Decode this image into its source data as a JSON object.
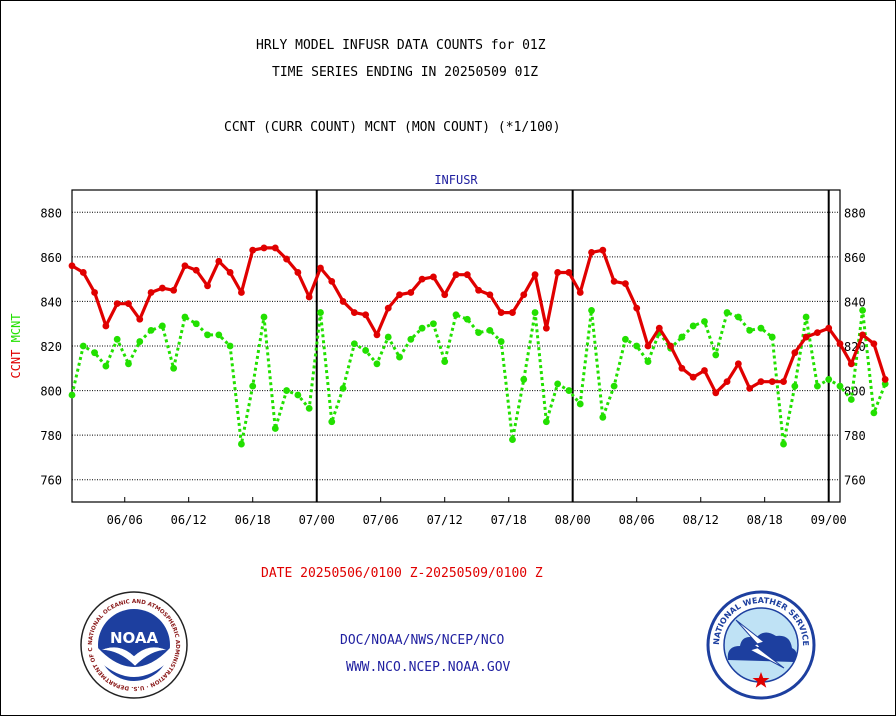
{
  "header": {
    "title_line1": "HRLY MODEL INFUSR DATA COUNTS for 01Z",
    "title_line2": "TIME SERIES ENDING IN 20250509 01Z",
    "subtitle": "CCNT (CURR COUNT) MCNT (MON COUNT) (*1/100)"
  },
  "footer": {
    "date_range": "DATE 20250506/0100 Z-20250509/0100 Z",
    "org_line": "DOC/NOAA/NWS/NCEP/NCO",
    "url_line": "WWW.NCO.NCEP.NOAA.GOV"
  },
  "logos": {
    "noaa_text": "NOAA",
    "noaa_ring_text": "NATIONAL OCEANIC AND ATMOSPHERIC ADMINISTRATION · U.S. DEPARTMENT OF COMMERCE",
    "nws_ring_text": "NATIONAL WEATHER SERVICE"
  },
  "colors": {
    "ccnt": "#e00000",
    "mcnt": "#22e000",
    "plot_title": "#1f1fa0"
  },
  "chart_data": {
    "type": "line",
    "title": "INFUSR",
    "ylabel_parts": [
      {
        "text": "CCNT",
        "color": "#e00000"
      },
      {
        "text": "MCNT",
        "color": "#22e000"
      }
    ],
    "ylim": [
      750,
      890
    ],
    "yticks": [
      760,
      780,
      800,
      820,
      840,
      860,
      880
    ],
    "xlim": [
      0,
      68
    ],
    "xticks": [
      {
        "x": 4.67,
        "label": "06/06"
      },
      {
        "x": 10.33,
        "label": "06/12"
      },
      {
        "x": 16,
        "label": "06/18"
      },
      {
        "x": 21.67,
        "label": "07/00"
      },
      {
        "x": 27.33,
        "label": "07/06"
      },
      {
        "x": 33,
        "label": "07/12"
      },
      {
        "x": 38.67,
        "label": "07/18"
      },
      {
        "x": 44.33,
        "label": "08/00"
      },
      {
        "x": 50,
        "label": "08/06"
      },
      {
        "x": 55.67,
        "label": "08/12"
      },
      {
        "x": 61.33,
        "label": "08/18"
      },
      {
        "x": 67,
        "label": "09/00"
      }
    ],
    "day_lines": [
      21.67,
      44.33,
      67
    ],
    "grid": true,
    "series": [
      {
        "name": "CCNT",
        "color": "#e00000",
        "style": "solid",
        "values": [
          856,
          853,
          844,
          829,
          839,
          839,
          832,
          844,
          846,
          845,
          856,
          854,
          847,
          858,
          853,
          844,
          863,
          864,
          864,
          859,
          853,
          842,
          855,
          849,
          840,
          835,
          834,
          825,
          837,
          843,
          844,
          850,
          851,
          843,
          852,
          852,
          845,
          843,
          835,
          835,
          843,
          852,
          828,
          853,
          853,
          844,
          862,
          863,
          849,
          848,
          837,
          820,
          828,
          820,
          810,
          806,
          809,
          799,
          804,
          812,
          801,
          804,
          804,
          804,
          817,
          824,
          826,
          828,
          821,
          812,
          825,
          821,
          805
        ]
      },
      {
        "name": "MCNT",
        "color": "#22e000",
        "style": "dotted",
        "values": [
          798,
          820,
          817,
          811,
          823,
          812,
          822,
          827,
          829,
          810,
          833,
          830,
          825,
          825,
          820,
          776,
          802,
          833,
          783,
          800,
          798,
          792,
          835,
          786,
          801,
          821,
          818,
          812,
          824,
          815,
          823,
          828,
          830,
          813,
          834,
          832,
          826,
          827,
          822,
          778,
          805,
          835,
          786,
          803,
          800,
          794,
          836,
          788,
          802,
          823,
          820,
          813,
          826,
          819,
          824,
          829,
          831,
          816,
          835,
          833,
          827,
          828,
          824,
          776,
          802,
          833,
          802,
          805,
          802,
          796,
          836,
          790,
          803
        ]
      }
    ]
  }
}
